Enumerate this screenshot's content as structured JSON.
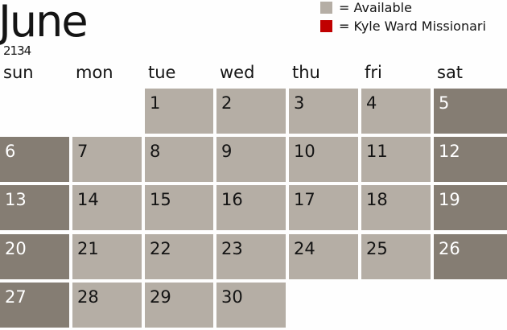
{
  "month": "June",
  "year": "2134",
  "legend": [
    {
      "label": "= Available",
      "color": "#b5aea5"
    },
    {
      "label": "= Kyle Ward Missionari",
      "color": "#c00000"
    }
  ],
  "colors": {
    "available": "#b5aea5",
    "weekend": "#857d73",
    "weekend_text": "#ffffff",
    "text": "#141414"
  },
  "weekdays": [
    "sun",
    "mon",
    "tue",
    "wed",
    "thu",
    "fri",
    "sat"
  ],
  "first_weekday": 2,
  "days": [
    {
      "day": "1",
      "status": "available"
    },
    {
      "day": "2",
      "status": "available"
    },
    {
      "day": "3",
      "status": "available"
    },
    {
      "day": "4",
      "status": "available"
    },
    {
      "day": "5",
      "status": "weekend"
    },
    {
      "day": "6",
      "status": "weekend"
    },
    {
      "day": "7",
      "status": "available"
    },
    {
      "day": "8",
      "status": "available"
    },
    {
      "day": "9",
      "status": "available"
    },
    {
      "day": "10",
      "status": "available"
    },
    {
      "day": "11",
      "status": "available"
    },
    {
      "day": "12",
      "status": "weekend"
    },
    {
      "day": "13",
      "status": "weekend"
    },
    {
      "day": "14",
      "status": "available"
    },
    {
      "day": "15",
      "status": "available"
    },
    {
      "day": "16",
      "status": "available"
    },
    {
      "day": "17",
      "status": "available"
    },
    {
      "day": "18",
      "status": "available"
    },
    {
      "day": "19",
      "status": "weekend"
    },
    {
      "day": "20",
      "status": "weekend"
    },
    {
      "day": "21",
      "status": "available"
    },
    {
      "day": "22",
      "status": "available"
    },
    {
      "day": "23",
      "status": "available"
    },
    {
      "day": "24",
      "status": "available"
    },
    {
      "day": "25",
      "status": "available"
    },
    {
      "day": "26",
      "status": "weekend"
    },
    {
      "day": "27",
      "status": "weekend"
    },
    {
      "day": "28",
      "status": "available"
    },
    {
      "day": "29",
      "status": "available"
    },
    {
      "day": "30",
      "status": "available"
    }
  ]
}
